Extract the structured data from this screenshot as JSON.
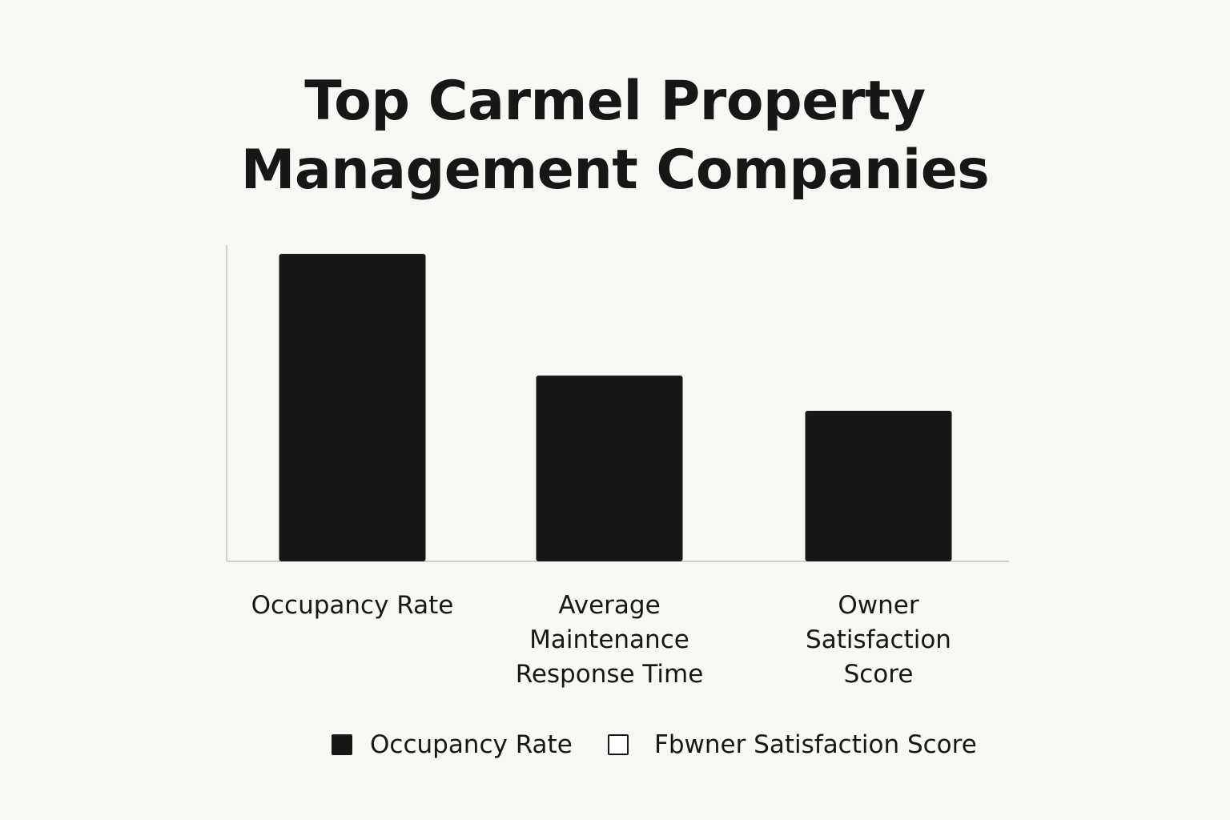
{
  "chart_data": {
    "type": "bar",
    "title": "Top Carmel Property Management Companies",
    "title_lines": [
      "Top Carmel Property",
      "Management Companies"
    ],
    "categories": [
      "Occupancy Rate",
      "Average Maintenance Response Time",
      "Owner Satisfaction Score"
    ],
    "category_lines": [
      [
        "Occupancy Rate"
      ],
      [
        "Average",
        "Maintenance",
        "Response Time"
      ],
      [
        "Owner",
        "Satisfaction",
        "Score"
      ]
    ],
    "values": [
      96,
      58,
      47
    ],
    "ylim": [
      0,
      100
    ],
    "xlabel": "",
    "ylabel": "",
    "grid": false,
    "bar_color": "#171717",
    "legend": {
      "placement": "bottom",
      "entries": [
        {
          "label": "Occupancy Rate",
          "fill": "#171717",
          "filled": true
        },
        {
          "label": "Fbwner Satisfaction Score",
          "fill": "#ffffff",
          "filled": false
        }
      ]
    }
  }
}
